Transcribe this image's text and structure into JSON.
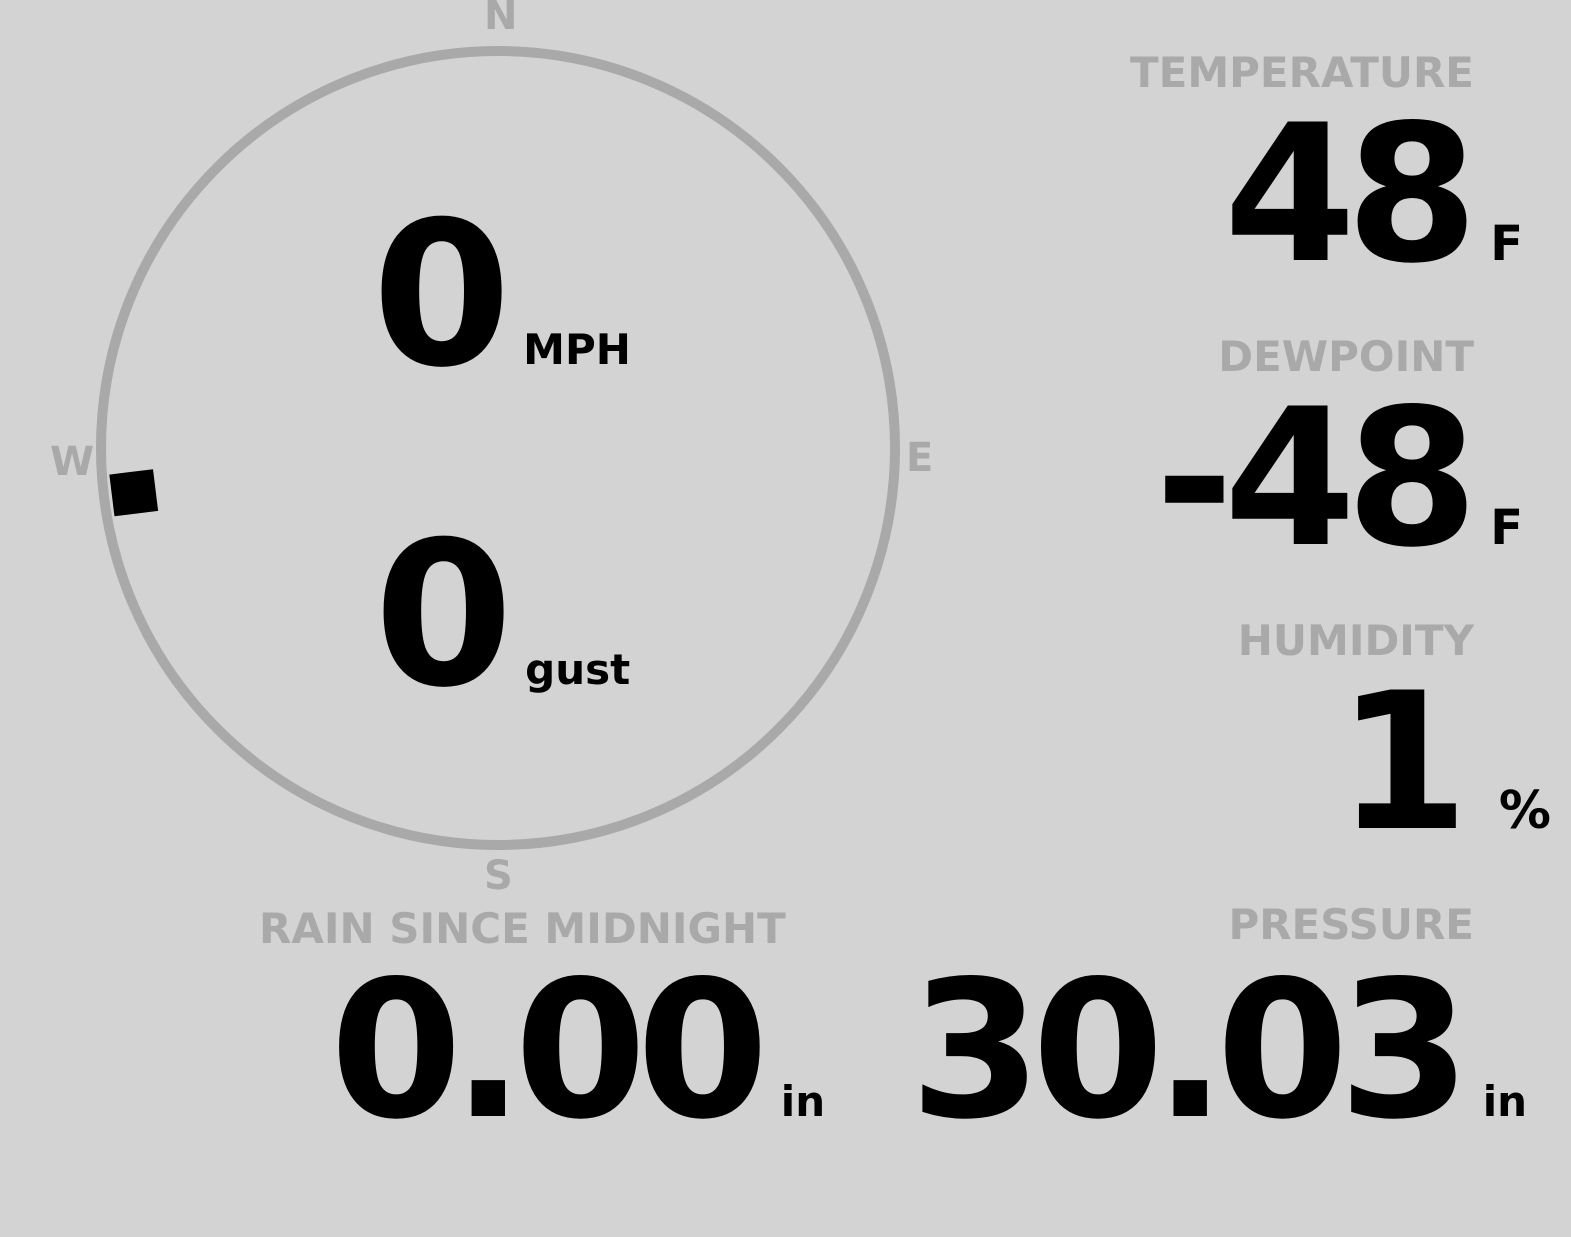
{
  "colors": {
    "background": "#d3d3d3",
    "label": "#a9a9a9",
    "value": "#000000"
  },
  "wind": {
    "compass": {
      "n": "N",
      "e": "E",
      "s": "S",
      "w": "W"
    },
    "wind_direction_deg": 263,
    "speed": "0",
    "speed_unit": "MPH",
    "gust": "0",
    "gust_unit": "gust"
  },
  "temperature": {
    "label": "TEMPERATURE",
    "value": "48",
    "unit": "F"
  },
  "dewpoint": {
    "label": "DEWPOINT",
    "value": "-48",
    "unit": "F"
  },
  "humidity": {
    "label": "HUMIDITY",
    "value": "1",
    "unit": "%"
  },
  "rain": {
    "label": "RAIN SINCE MIDNIGHT",
    "value": "0.00",
    "unit": "in"
  },
  "pressure": {
    "label": "PRESSURE",
    "value": "30.03",
    "unit": "in"
  }
}
